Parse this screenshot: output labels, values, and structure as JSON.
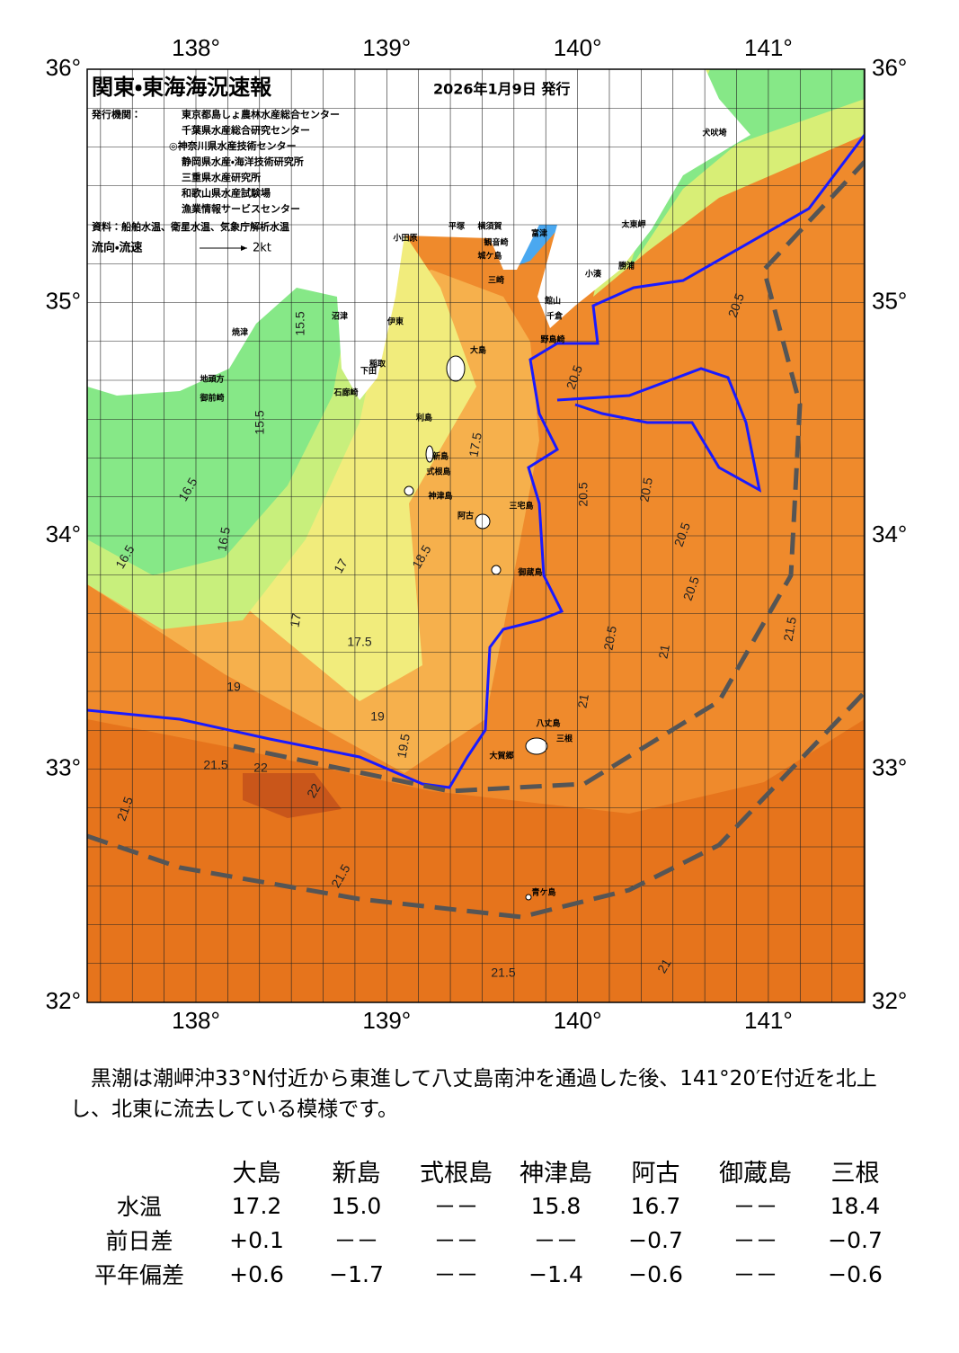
{
  "map": {
    "title": "関東・東海海況速報",
    "date": "2026年1月9日 発行",
    "publishers_label": "発行機関：",
    "publishers": [
      "東京都島しょ農林水産総合センター",
      "千葉県水産総合研究センター",
      "◎神奈川県水産技術センター",
      "静岡県水産・海洋技術研究所",
      "三重県水産研究所",
      "和歌山県水産試験場",
      "漁業情報サービスセンター"
    ],
    "sources": "資料：船舶水温、衛星水温、気象庁解析水温",
    "current_legend": "流向・流速",
    "current_unit": "2kt",
    "lon_labels": [
      "138°",
      "139°",
      "140°",
      "141°"
    ],
    "lat_labels": [
      "36°",
      "35°",
      "34°",
      "33°",
      "32°"
    ],
    "place_names": [
      "犬吠埼",
      "太東岬",
      "勝浦",
      "小湊",
      "小田原",
      "平塚",
      "横須賀",
      "富津",
      "観音崎",
      "城ケ島",
      "三崎",
      "館山",
      "千倉",
      "野島崎",
      "大島",
      "伊東",
      "沼津",
      "焼津",
      "地頭方",
      "御前崎",
      "稲取",
      "下田",
      "石廊崎",
      "利島",
      "新島",
      "式根島",
      "神津島",
      "三宅島",
      "阿古",
      "御蔵島",
      "八丈島",
      "三根",
      "大賀郷",
      "青ケ島"
    ],
    "contour_labels": [
      "15.5",
      "15.5",
      "16.5",
      "16.5",
      "16.5",
      "17",
      "17.5",
      "17.5",
      "18.5",
      "19",
      "19",
      "19.5",
      "20.5",
      "20.5",
      "20.5",
      "20.5",
      "20.5",
      "20.5",
      "21",
      "21",
      "21.5",
      "21.5",
      "21.5",
      "21.5",
      "22",
      "22",
      "17",
      "20.5",
      "21.5",
      "21"
    ]
  },
  "summary": "黒潮は潮岬沖33°N付近から東進して八丈島南沖を通過した後、141°20′E付近を北上し、北東に流去している模様です。",
  "table": {
    "columns": [
      "大島",
      "新島",
      "式根島",
      "神津島",
      "阿古",
      "御蔵島",
      "三根"
    ],
    "rows": [
      {
        "label": "水温",
        "cells": [
          "17.2",
          "15.0",
          "－－",
          "15.8",
          "16.7",
          "－－",
          "18.4"
        ]
      },
      {
        "label": "前日差",
        "cells": [
          "+0.1",
          "－－",
          "－－",
          "－－",
          "−0.7",
          "－－",
          "−0.7"
        ]
      },
      {
        "label": "平年偏差",
        "cells": [
          "+0.6",
          "−1.7",
          "－－",
          "−1.4",
          "−0.6",
          "－－",
          "−0.6"
        ]
      }
    ]
  }
}
